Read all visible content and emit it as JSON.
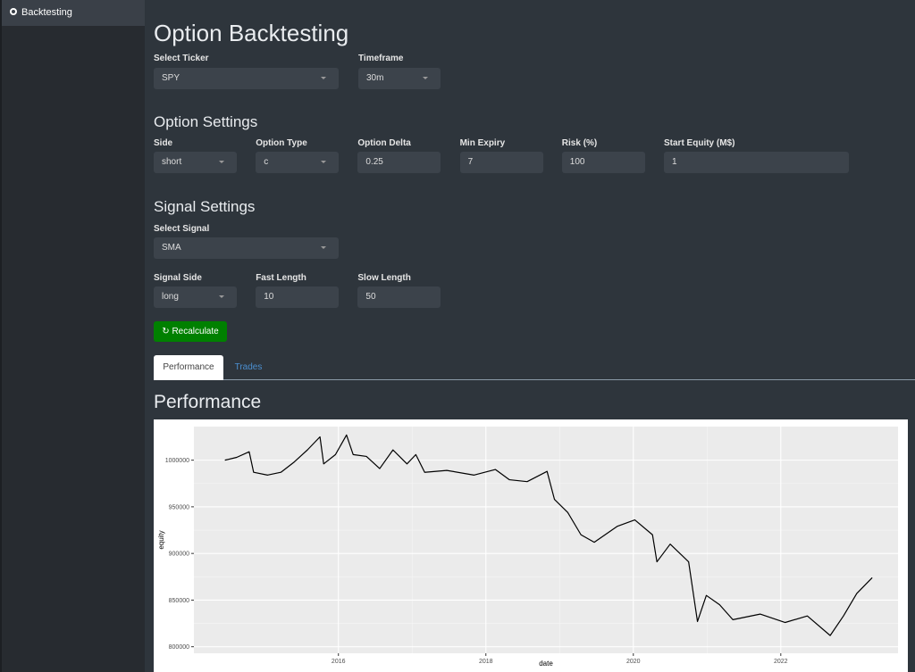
{
  "sidebar": {
    "items": [
      "Backtesting"
    ]
  },
  "header": {
    "title": "Option Backtesting"
  },
  "ticker": {
    "label": "Select Ticker",
    "value": "SPY"
  },
  "timeframe": {
    "label": "Timeframe",
    "value": "30m"
  },
  "option_settings": {
    "title": "Option Settings",
    "fields": [
      {
        "label": "Side",
        "value": "short"
      },
      {
        "label": "Option Type",
        "value": "c"
      },
      {
        "label": "Option Delta",
        "value": "0.25"
      },
      {
        "label": "Min Expiry",
        "value": "7"
      },
      {
        "label": "Risk (%)",
        "value": "100"
      },
      {
        "label": "Start Equity (M$)",
        "value": "1"
      }
    ]
  },
  "signal_settings": {
    "title": "Signal Settings",
    "select": {
      "label": "Select Signal",
      "value": "SMA"
    },
    "fields": [
      {
        "label": "Signal Side",
        "value": "long"
      },
      {
        "label": "Fast Length",
        "value": "10"
      },
      {
        "label": "Slow Length",
        "value": "50"
      }
    ]
  },
  "button": "Recalculate",
  "tabs": [
    "Performance",
    "Trades"
  ],
  "section_title": "Performance",
  "chart_data": {
    "type": "line",
    "xlabel": "date",
    "ylabel": "equity",
    "color": "#000000",
    "grid": true,
    "x": [
      2014.46,
      2014.62,
      2014.79,
      2014.85,
      2015.04,
      2015.22,
      2015.4,
      2015.58,
      2015.75,
      2015.8,
      2015.96,
      2016.11,
      2016.2,
      2016.38,
      2016.56,
      2016.74,
      2016.93,
      2017.05,
      2017.17,
      2017.47,
      2017.84,
      2018.13,
      2018.32,
      2018.56,
      2018.83,
      2018.93,
      2019.11,
      2019.29,
      2019.47,
      2019.78,
      2020.02,
      2020.26,
      2020.32,
      2020.5,
      2020.75,
      2020.87,
      2020.99,
      2021.17,
      2021.35,
      2021.72,
      2022.06,
      2022.36,
      2022.67,
      2022.85,
      2023.03,
      2023.24
    ],
    "values": [
      1000000,
      1003000,
      1009000,
      987000,
      984000,
      987000,
      998000,
      1011000,
      1025000,
      996000,
      1006000,
      1027000,
      1006000,
      1004000,
      991000,
      1011000,
      996000,
      1006000,
      987000,
      989000,
      984000,
      990000,
      979000,
      977000,
      988000,
      958000,
      944000,
      920000,
      912000,
      929000,
      936000,
      920000,
      891000,
      910000,
      891000,
      827000,
      855000,
      845000,
      829000,
      835000,
      826000,
      833000,
      812000,
      833000,
      857000,
      874000
    ],
    "xlim": [
      2014.04,
      2023.59
    ],
    "xticks": [
      2016,
      2018,
      2020,
      2022
    ],
    "ylim": [
      793000,
      1036000
    ],
    "yticks": [
      800000,
      850000,
      900000,
      950000,
      1000000
    ]
  }
}
